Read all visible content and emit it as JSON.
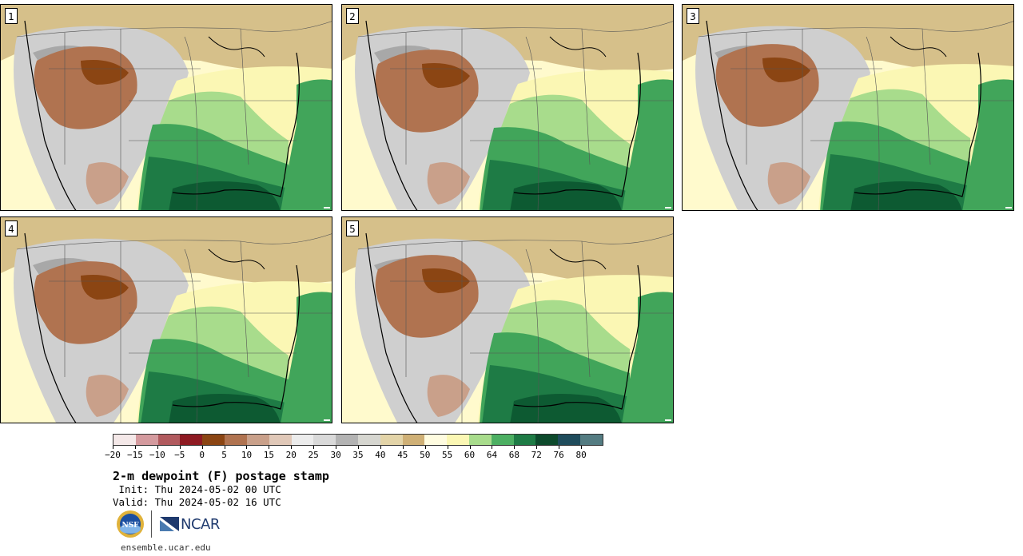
{
  "panels": [
    {
      "label": "1"
    },
    {
      "label": "2"
    },
    {
      "label": "3"
    },
    {
      "label": "4"
    },
    {
      "label": "5"
    }
  ],
  "colorbar": {
    "colors": [
      "#f4e8e8",
      "#d49a9e",
      "#b15a5e",
      "#8e1a22",
      "#8b4513",
      "#b07350",
      "#c9a08a",
      "#e0c8b8",
      "#ececec",
      "#d9d9d9",
      "#b3b3b3",
      "#d6d6d0",
      "#e3d4a8",
      "#cfb076",
      "#fffce0",
      "#fbf7b4",
      "#a8dc8c",
      "#4caf62",
      "#1e7b45",
      "#0d4a2c",
      "#1f4c5c",
      "#547c82"
    ],
    "tick_labels": [
      "-20",
      "-15",
      "-10",
      "-5",
      "0",
      "5",
      "10",
      "15",
      "20",
      "25",
      "30",
      "35",
      "40",
      "45",
      "50",
      "55",
      "60",
      "64",
      "68",
      "72",
      "76",
      "80"
    ]
  },
  "title": "2-m dewpoint (F) postage stamp",
  "init_line": " Init: Thu 2024-05-02 00 UTC",
  "valid_line": "Valid: Thu 2024-05-02 16 UTC",
  "logos": {
    "nsf": "NSF",
    "ncar": "NCAR"
  },
  "site": "ensemble.ucar.edu",
  "map_colors": {
    "ocean_east": "#41a55a",
    "gulf": "#0d5a32",
    "moist": "#1e7b45",
    "green_light": "#a8dc8c",
    "yellow": "#fbf7b4",
    "tan": "#d6c08a",
    "gray": "#cfcfcf",
    "gray_dark": "#a8a8a8",
    "brown": "#b07350",
    "brown_dark": "#8b4513",
    "pacific": "#fffacd"
  }
}
